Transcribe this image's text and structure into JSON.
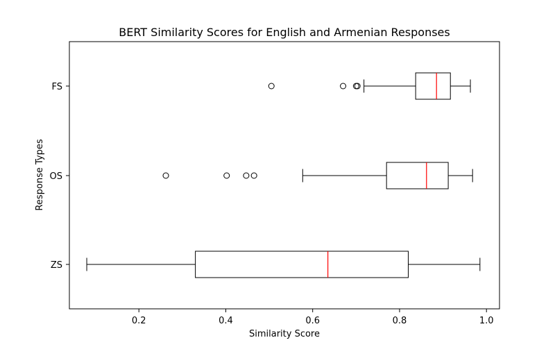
{
  "chart_data": {
    "type": "boxplot",
    "orientation": "horizontal",
    "title": "BERT Similarity Scores for English and Armenian Responses",
    "xlabel": "Similarity Score",
    "ylabel": "Response Types",
    "xlim": [
      0.04,
      1.03
    ],
    "xticks": [
      0.2,
      0.4,
      0.6,
      0.8,
      1.0
    ],
    "xtick_labels": [
      "0.2",
      "0.4",
      "0.6",
      "0.8",
      "1.0"
    ],
    "grid": false,
    "colors": {
      "box": "#000000",
      "median": "#ff0000",
      "background": "#ffffff"
    },
    "categories": [
      "ZS",
      "OS",
      "FS"
    ],
    "boxes": [
      {
        "label": "ZS",
        "whisker_low": 0.08,
        "q1": 0.33,
        "median": 0.635,
        "q3": 0.82,
        "whisker_high": 0.985,
        "outliers": []
      },
      {
        "label": "OS",
        "whisker_low": 0.577,
        "q1": 0.77,
        "median": 0.862,
        "q3": 0.912,
        "whisker_high": 0.968,
        "outliers": [
          0.262,
          0.402,
          0.447,
          0.465
        ]
      },
      {
        "label": "FS",
        "whisker_low": 0.718,
        "q1": 0.837,
        "median": 0.885,
        "q3": 0.917,
        "whisker_high": 0.963,
        "outliers": [
          0.505,
          0.67,
          0.7,
          0.703
        ]
      }
    ]
  }
}
